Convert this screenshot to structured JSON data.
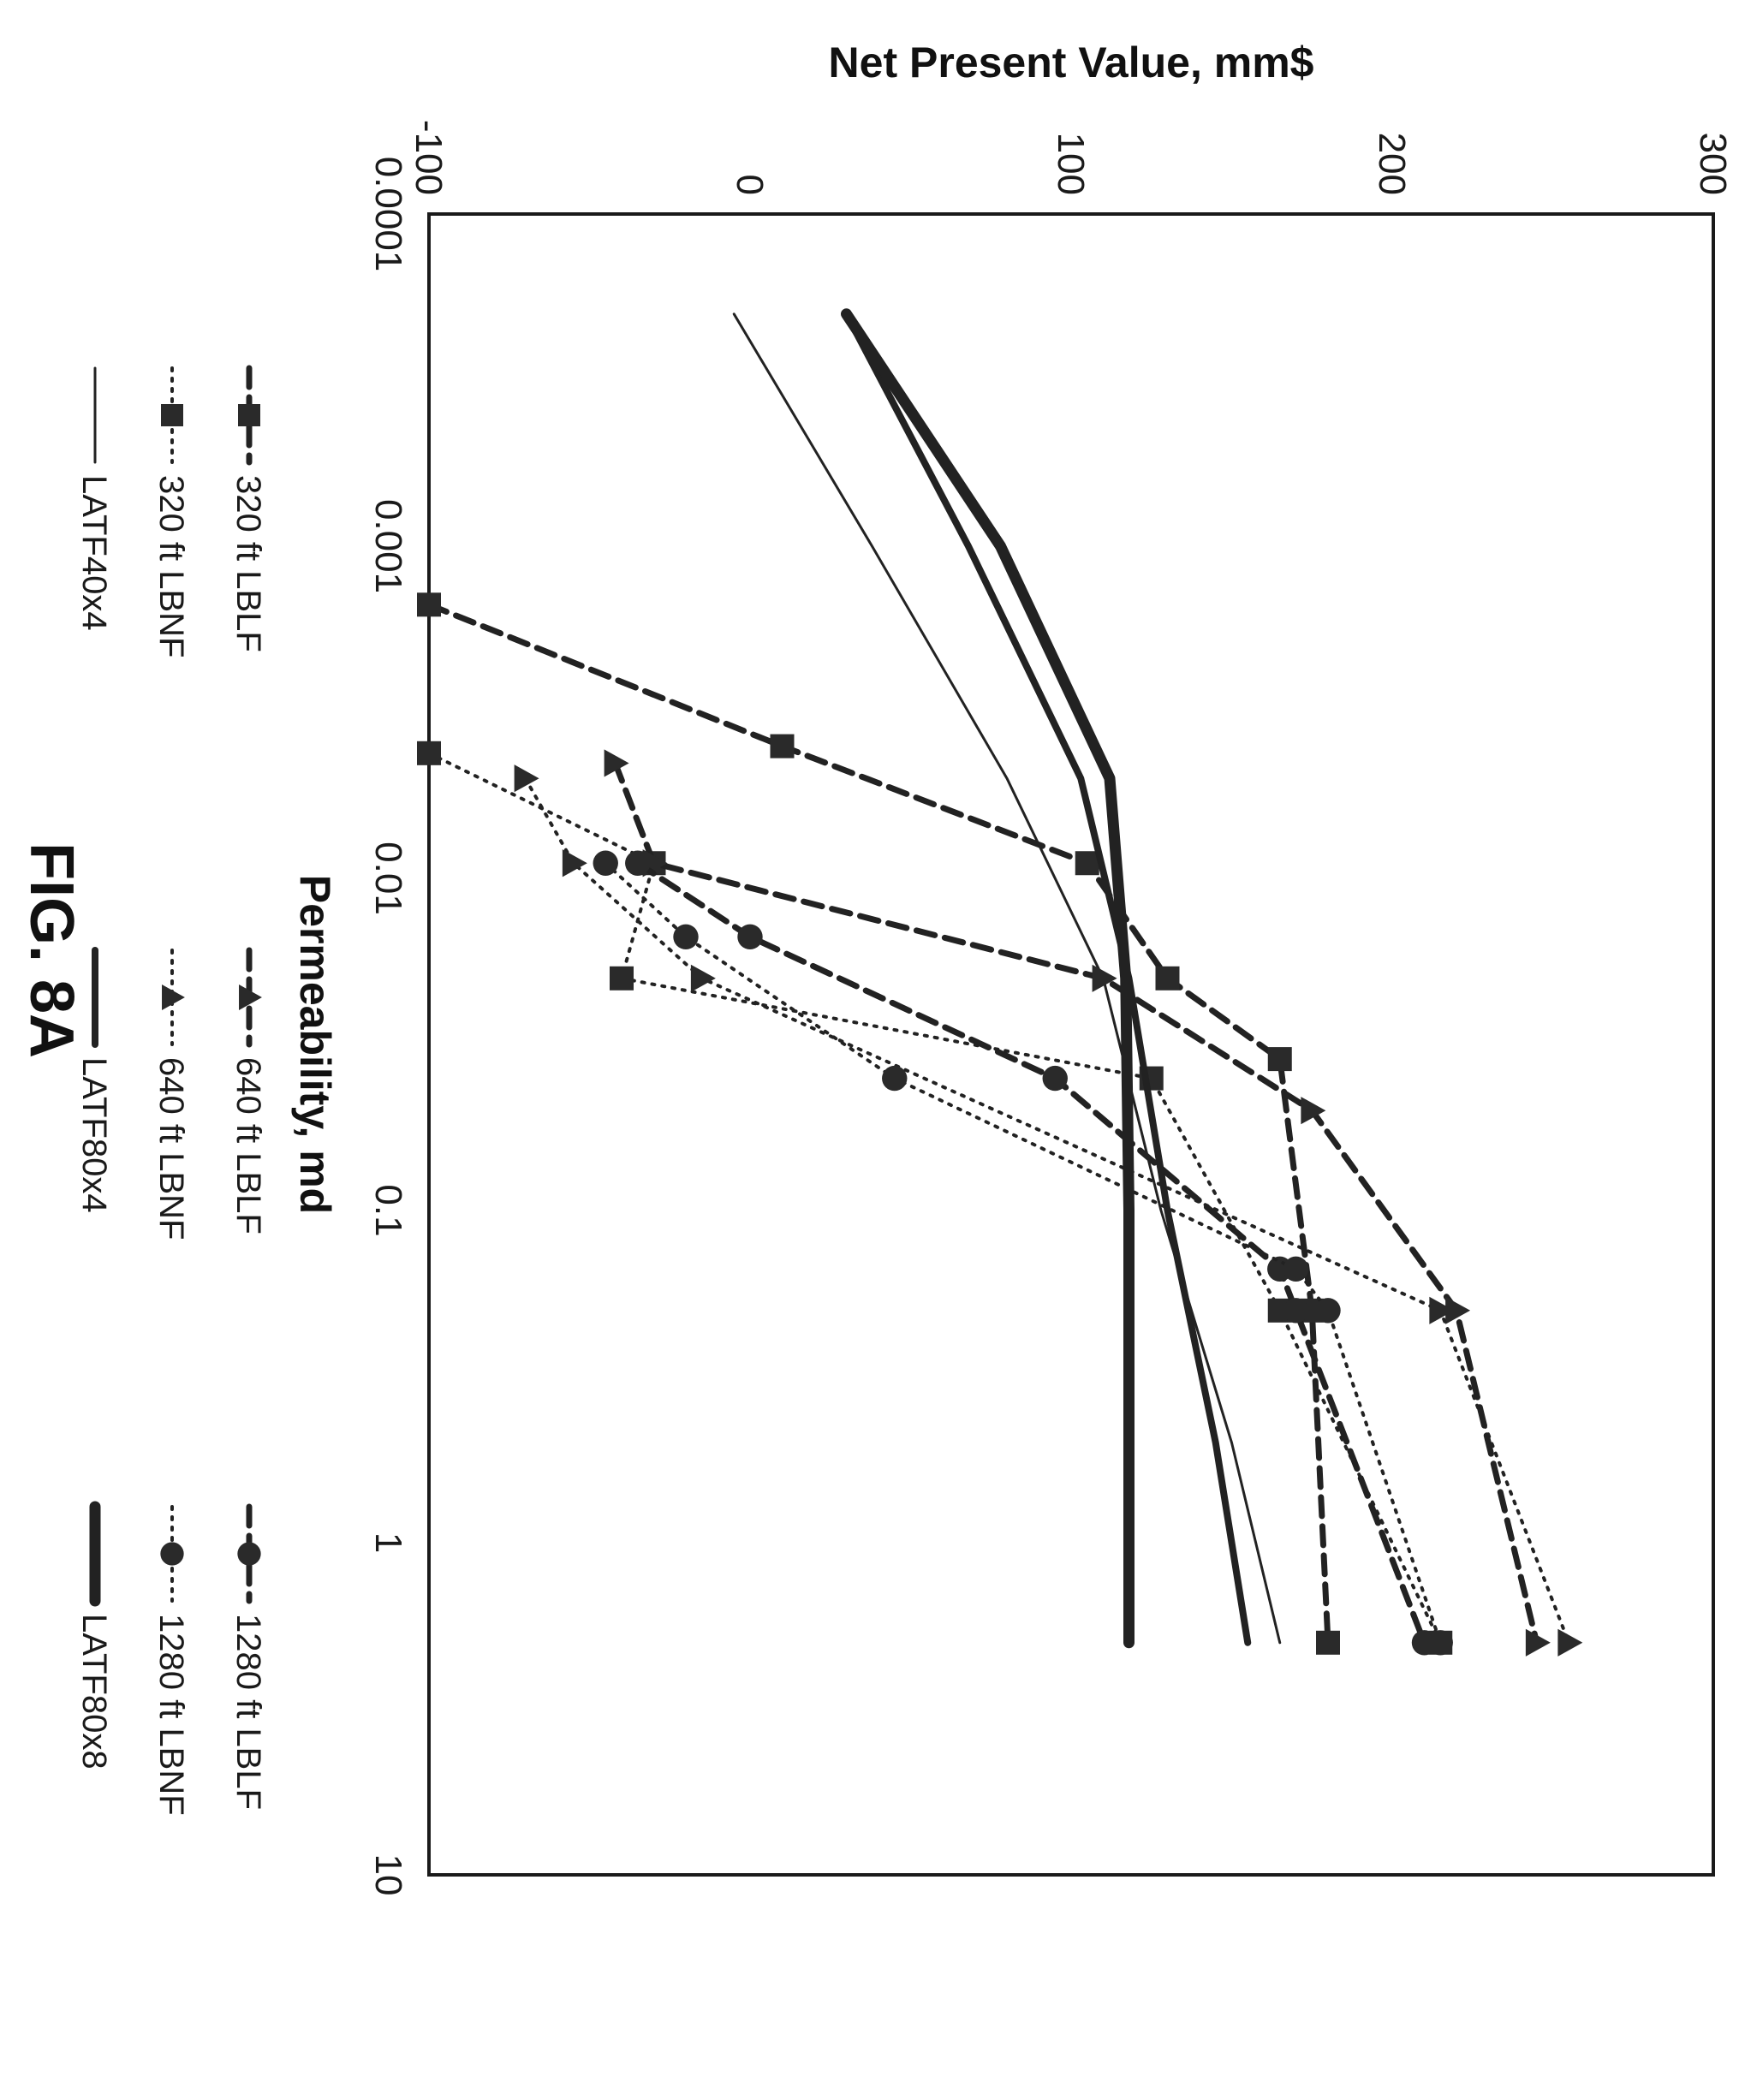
{
  "figure_label": "FIG. 8A",
  "chart_data": {
    "type": "line",
    "title": "",
    "xlabel": "Permeability, md",
    "ylabel": "Net Present Value, mm$",
    "x_scale": "log",
    "xlim": [
      0.0001,
      10
    ],
    "ylim": [
      -100,
      300
    ],
    "x_ticks": [
      "0.0001",
      "0.001",
      "0.01",
      "0.1",
      "1",
      "10"
    ],
    "y_ticks": [
      "-100",
      "0",
      "100",
      "200",
      "300"
    ],
    "grid": false,
    "legend_position": "bottom",
    "series": [
      {
        "name": "320 ft LBLF",
        "style": "dashed",
        "marker": "square",
        "x": [
          0.0015,
          0.004,
          0.009,
          0.02,
          0.035,
          0.2,
          2.0
        ],
        "y": [
          -100,
          10,
          105,
          130,
          165,
          175,
          180
        ]
      },
      {
        "name": "320 ft LBNF",
        "style": "dotted",
        "marker": "square",
        "x": [
          0.0042,
          0.009,
          0.02,
          0.04,
          0.2,
          2.0
        ],
        "y": [
          -100,
          -30,
          -40,
          125,
          165,
          215
        ]
      },
      {
        "name": "LATF40x4",
        "style": "solid-thin",
        "x": [
          0.0002,
          0.001,
          0.005,
          0.02,
          0.1,
          0.5,
          2.0
        ],
        "y": [
          -5,
          38,
          80,
          110,
          128,
          150,
          165
        ]
      },
      {
        "name": "640 ft LBLF",
        "style": "dashed",
        "marker": "triangle",
        "x": [
          0.0045,
          0.009,
          0.02,
          0.05,
          0.2,
          2.0
        ],
        "y": [
          -42,
          -30,
          110,
          175,
          220,
          245
        ]
      },
      {
        "name": "640 ft LBNF",
        "style": "dotted",
        "marker": "triangle",
        "x": [
          0.005,
          0.009,
          0.02,
          0.2,
          2.0
        ],
        "y": [
          -70,
          -55,
          -15,
          215,
          255
        ]
      },
      {
        "name": "LATF80x4",
        "style": "solid-medium",
        "x": [
          0.0002,
          0.001,
          0.005,
          0.02,
          0.1,
          0.5,
          2.0
        ],
        "y": [
          30,
          68,
          103,
          118,
          130,
          145,
          155
        ]
      },
      {
        "name": "1280 ft LBLF",
        "style": "dashed",
        "marker": "circle",
        "x": [
          0.009,
          0.015,
          0.04,
          0.15,
          0.2,
          2.0
        ],
        "y": [
          -35,
          0,
          95,
          165,
          170,
          210
        ]
      },
      {
        "name": "1280 ft LBNF",
        "style": "dotted",
        "marker": "circle",
        "x": [
          0.009,
          0.015,
          0.04,
          0.15,
          0.2,
          2.0
        ],
        "y": [
          -45,
          -20,
          45,
          170,
          180,
          215
        ]
      },
      {
        "name": "LATF80x8",
        "style": "solid-thick",
        "x": [
          0.0002,
          0.001,
          0.005,
          0.02,
          0.1,
          0.5,
          2.0
        ],
        "y": [
          30,
          78,
          112,
          117,
          118,
          118,
          118
        ]
      }
    ]
  }
}
